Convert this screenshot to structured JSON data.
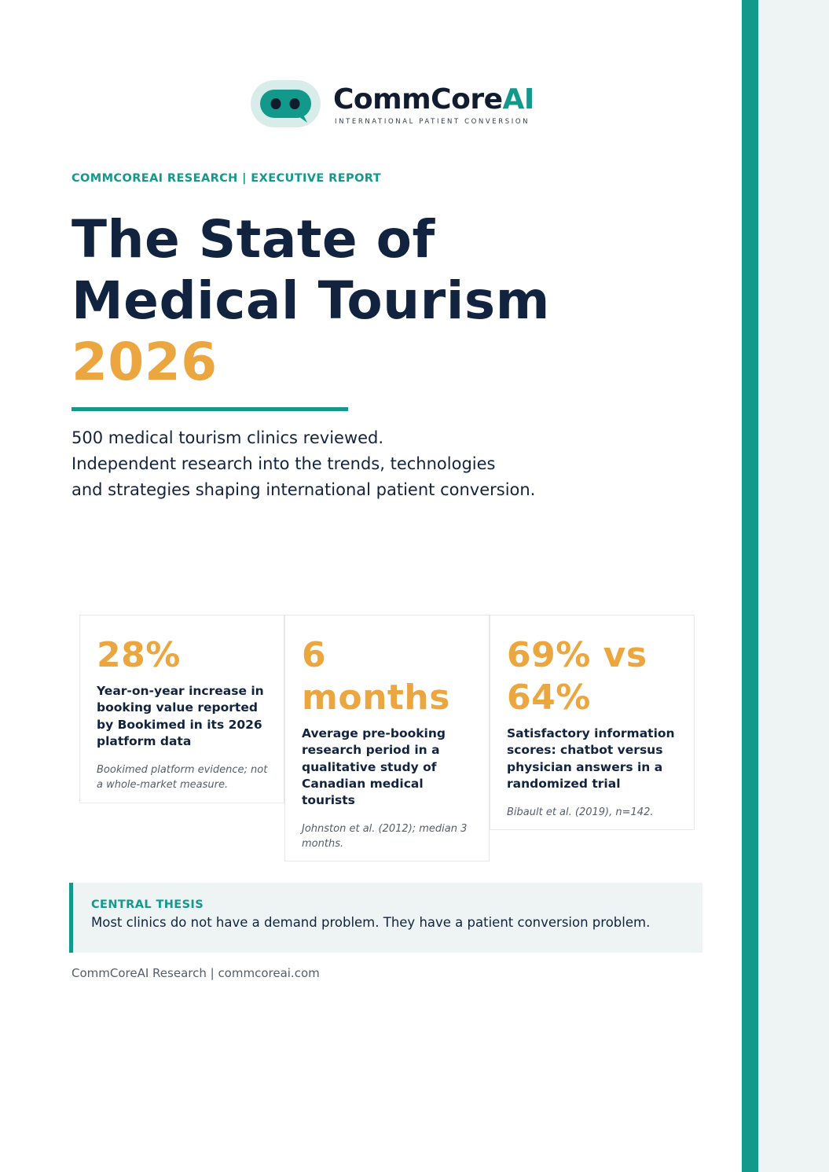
{
  "brand": {
    "name_main": "CommCore",
    "name_accent": "AI",
    "tagline": "INTERNATIONAL PATIENT CONVERSION"
  },
  "eyebrow": "COMMCOREAI RESEARCH | EXECUTIVE REPORT",
  "title": {
    "line1": "The State of",
    "line2": "Medical Tourism",
    "year": "2026"
  },
  "intro": {
    "line1": "500 medical tourism clinics reviewed.",
    "line2": "Independent research into the trends, technologies",
    "line3": "and strategies shaping international patient conversion."
  },
  "stats": [
    {
      "value": "28%",
      "description": "Year-on-year increase in booking value reported by Bookimed in its 2026 platform data",
      "note": "Bookimed platform evidence; not a whole-market measure."
    },
    {
      "value": "6 months",
      "description": "Average pre-booking research period in a qualitative study of Canadian medical tourists",
      "note": "Johnston et al. (2012); median 3 months."
    },
    {
      "value": "69% vs 64%",
      "description": "Satisfactory information scores: chatbot versus physician answers in a randomized trial",
      "note": "Bibault et al. (2019), n=142."
    }
  ],
  "thesis": {
    "label": "CENTRAL THESIS",
    "text": "Most clinics do not have a demand problem. They have a patient conversion problem."
  },
  "footer": "CommCoreAI Research | commcoreai.com",
  "colors": {
    "navy": "#12233f",
    "teal": "#12998c",
    "amber": "#eca63f",
    "panel": "#eef4f4"
  }
}
